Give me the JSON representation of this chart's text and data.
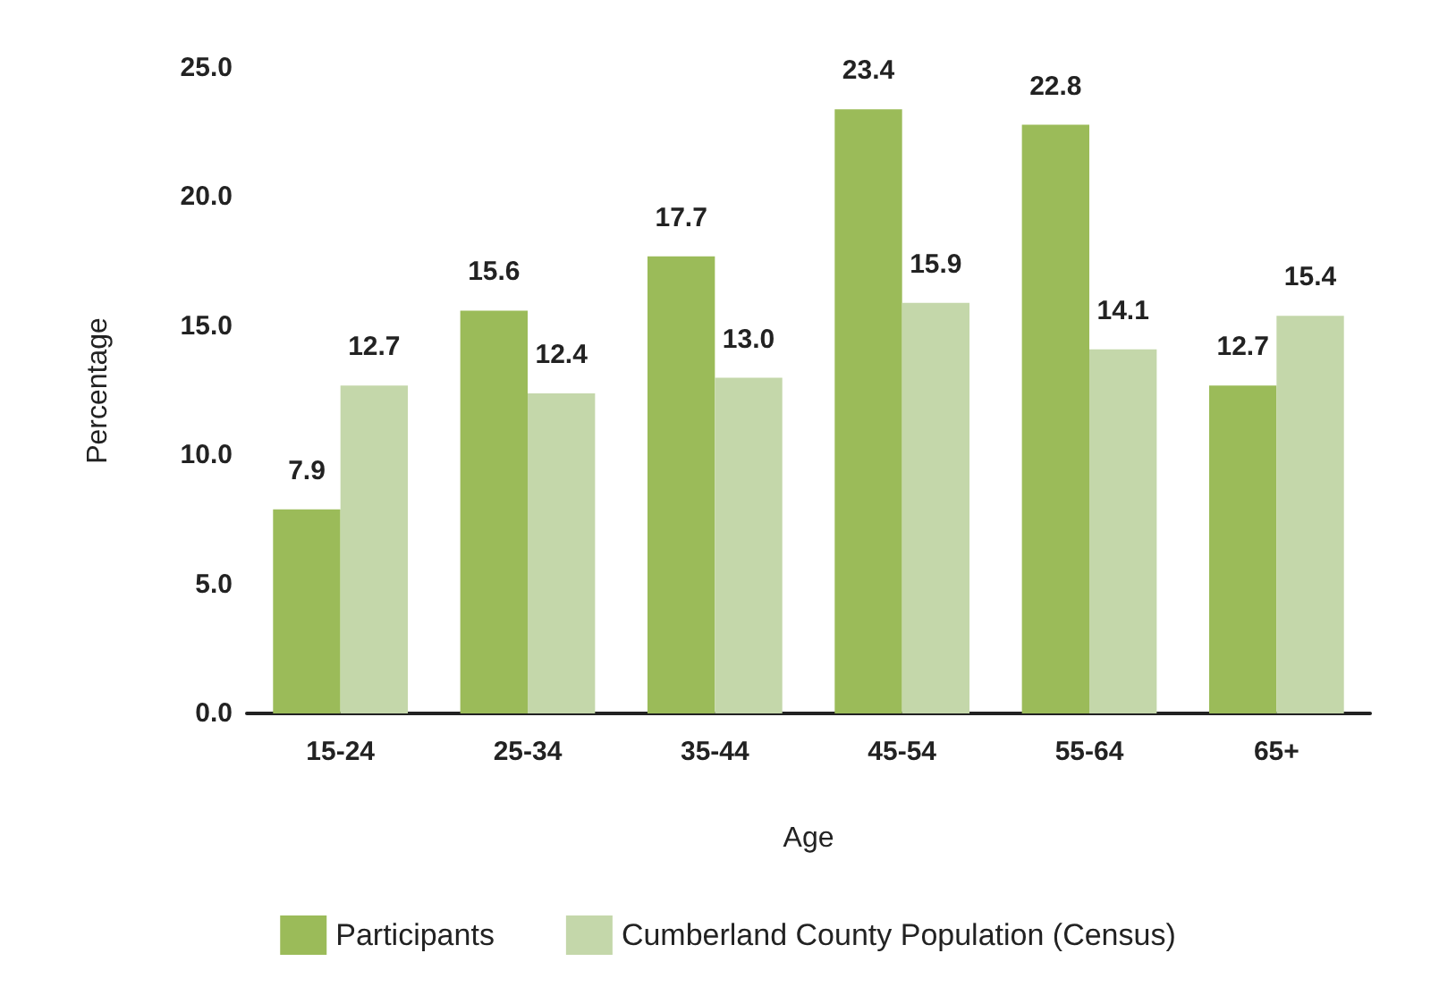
{
  "chart_data": {
    "type": "bar",
    "xlabel": "Age",
    "ylabel": "Percentage",
    "categories": [
      "15-24",
      "25-34",
      "35-44",
      "45-54",
      "55-64",
      "65+"
    ],
    "series": [
      {
        "name": "Participants",
        "color": "#9bbb59",
        "values": [
          7.9,
          15.6,
          17.7,
          23.4,
          22.8,
          12.7
        ]
      },
      {
        "name": "Cumberland County Population (Census)",
        "color": "#c4d7aa",
        "values": [
          12.7,
          12.4,
          13.0,
          15.9,
          14.1,
          15.4
        ],
        "value_labels": [
          "12.7",
          "12.4",
          "13.0",
          "15.9",
          "14.1",
          "15.4"
        ]
      }
    ],
    "ylim": [
      0,
      25
    ],
    "yticks": [
      {
        "value": 0,
        "label": "0.0"
      },
      {
        "value": 5,
        "label": "5.0"
      },
      {
        "value": 10,
        "label": "10.0"
      },
      {
        "value": 15,
        "label": "15.0"
      },
      {
        "value": 20,
        "label": "20.0"
      },
      {
        "value": 25,
        "label": "25.0"
      }
    ],
    "data_labels": true,
    "grid": false,
    "legend": "bottom"
  }
}
